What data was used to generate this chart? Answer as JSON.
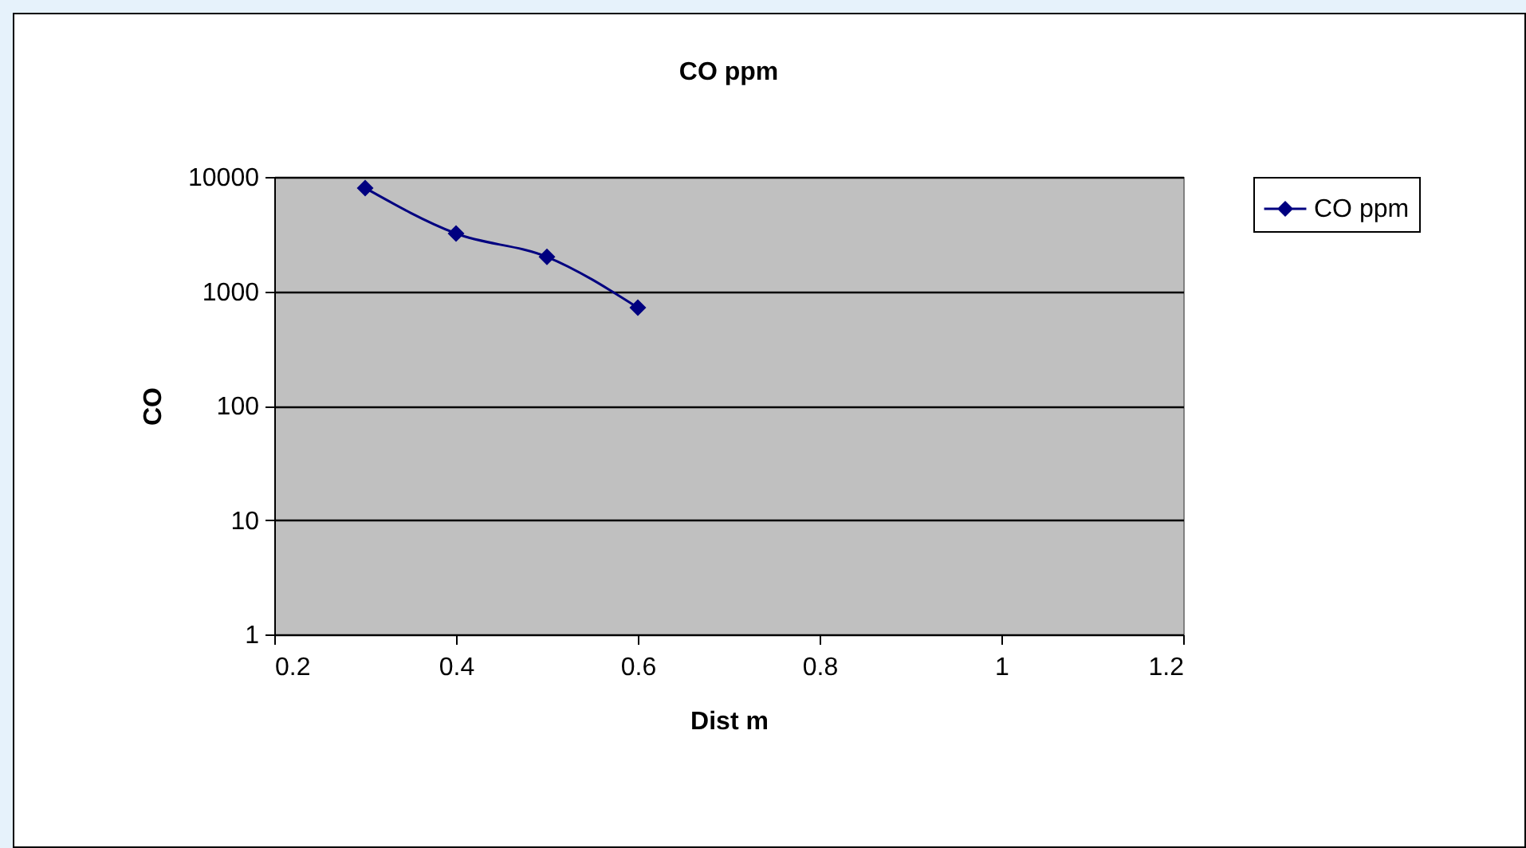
{
  "chart_data": {
    "type": "line",
    "title": "CO ppm",
    "xlabel": "Dist m",
    "ylabel": "CO",
    "x": [
      0.3,
      0.4,
      0.5,
      0.6
    ],
    "series": [
      {
        "name": "CO ppm",
        "color": "#000080",
        "values": [
          8000,
          3200,
          2000,
          720
        ]
      }
    ],
    "xlim": [
      0.2,
      1.2
    ],
    "xticks": [
      0.2,
      0.4,
      0.6,
      0.8,
      1,
      1.2
    ],
    "ylim": [
      1,
      10000
    ],
    "yticks": [
      1,
      10,
      100,
      1000,
      10000
    ],
    "log": "y",
    "grid": "y",
    "legend": "right",
    "marker": "diamond",
    "line_style": "solid"
  }
}
